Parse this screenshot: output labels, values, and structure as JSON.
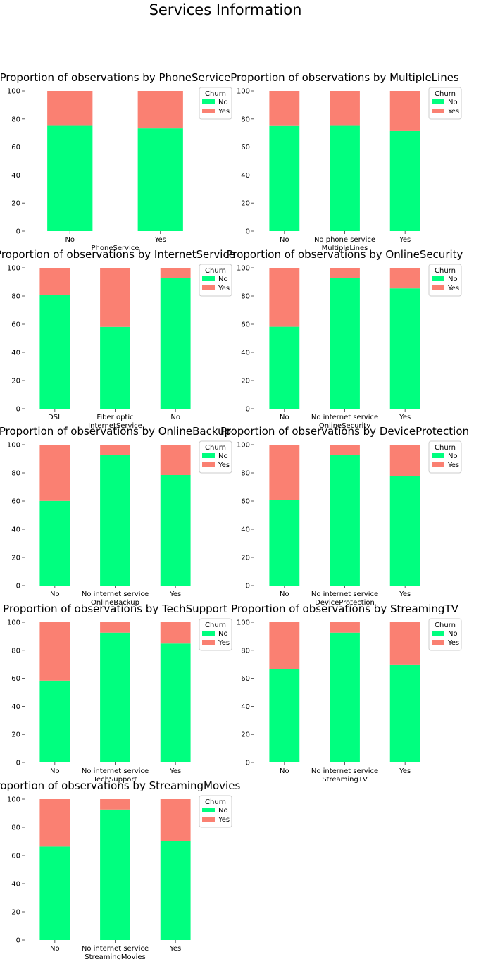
{
  "figure": {
    "suptitle": "Services Information"
  },
  "colors": {
    "No": "#00FF7F",
    "Yes": "#FA8072"
  },
  "legend_title": "Churn",
  "legend_labels": [
    "No",
    "Yes"
  ],
  "chart_data": [
    {
      "type": "bar",
      "stacked": true,
      "title": "Proportion of observations by PhoneService",
      "xlabel": "PhoneService",
      "ylabel": "",
      "ylim": [
        0,
        100
      ],
      "yticks": [
        0,
        20,
        40,
        60,
        80,
        100
      ],
      "categories": [
        "No",
        "Yes"
      ],
      "series": [
        {
          "name": "No",
          "values": [
            75.1,
            73.3
          ]
        },
        {
          "name": "Yes",
          "values": [
            24.9,
            26.7
          ]
        }
      ],
      "legend": {
        "title": "Churn",
        "placement": "top-right"
      }
    },
    {
      "type": "bar",
      "stacked": true,
      "title": "Proportion of observations by MultipleLines",
      "xlabel": "MultipleLines",
      "ylabel": "",
      "ylim": [
        0,
        100
      ],
      "yticks": [
        0,
        20,
        40,
        60,
        80,
        100
      ],
      "categories": [
        "No",
        "No phone service",
        "Yes"
      ],
      "series": [
        {
          "name": "No",
          "values": [
            75.0,
            75.1,
            71.4
          ]
        },
        {
          "name": "Yes",
          "values": [
            25.0,
            24.9,
            28.6
          ]
        }
      ],
      "legend": {
        "title": "Churn",
        "placement": "top-right"
      }
    },
    {
      "type": "bar",
      "stacked": true,
      "title": "Proportion of observations by InternetService",
      "xlabel": "InternetService",
      "ylabel": "",
      "ylim": [
        0,
        100
      ],
      "yticks": [
        0,
        20,
        40,
        60,
        80,
        100
      ],
      "categories": [
        "DSL",
        "Fiber optic",
        "No"
      ],
      "series": [
        {
          "name": "No",
          "values": [
            81.0,
            58.1,
            92.6
          ]
        },
        {
          "name": "Yes",
          "values": [
            19.0,
            41.9,
            7.4
          ]
        }
      ],
      "legend": {
        "title": "Churn",
        "placement": "top-right"
      }
    },
    {
      "type": "bar",
      "stacked": true,
      "title": "Proportion of observations by OnlineSecurity",
      "xlabel": "OnlineSecurity",
      "ylabel": "",
      "ylim": [
        0,
        100
      ],
      "yticks": [
        0,
        20,
        40,
        60,
        80,
        100
      ],
      "categories": [
        "No",
        "No internet service",
        "Yes"
      ],
      "series": [
        {
          "name": "No",
          "values": [
            58.2,
            92.6,
            85.4
          ]
        },
        {
          "name": "Yes",
          "values": [
            41.8,
            7.4,
            14.6
          ]
        }
      ],
      "legend": {
        "title": "Churn",
        "placement": "top-right"
      }
    },
    {
      "type": "bar",
      "stacked": true,
      "title": "Proportion of observations by OnlineBackup",
      "xlabel": "OnlineBackup",
      "ylabel": "",
      "ylim": [
        0,
        100
      ],
      "yticks": [
        0,
        20,
        40,
        60,
        80,
        100
      ],
      "categories": [
        "No",
        "No internet service",
        "Yes"
      ],
      "series": [
        {
          "name": "No",
          "values": [
            60.1,
            92.6,
            78.5
          ]
        },
        {
          "name": "Yes",
          "values": [
            39.9,
            7.4,
            21.5
          ]
        }
      ],
      "legend": {
        "title": "Churn",
        "placement": "top-right"
      }
    },
    {
      "type": "bar",
      "stacked": true,
      "title": "Proportion of observations by DeviceProtection",
      "xlabel": "DeviceProtection",
      "ylabel": "",
      "ylim": [
        0,
        100
      ],
      "yticks": [
        0,
        20,
        40,
        60,
        80,
        100
      ],
      "categories": [
        "No",
        "No internet service",
        "Yes"
      ],
      "series": [
        {
          "name": "No",
          "values": [
            60.9,
            92.6,
            77.5
          ]
        },
        {
          "name": "Yes",
          "values": [
            39.1,
            7.4,
            22.5
          ]
        }
      ],
      "legend": {
        "title": "Churn",
        "placement": "top-right"
      }
    },
    {
      "type": "bar",
      "stacked": true,
      "title": "Proportion of observations by TechSupport",
      "xlabel": "TechSupport",
      "ylabel": "",
      "ylim": [
        0,
        100
      ],
      "yticks": [
        0,
        20,
        40,
        60,
        80,
        100
      ],
      "categories": [
        "No",
        "No internet service",
        "Yes"
      ],
      "series": [
        {
          "name": "No",
          "values": [
            58.4,
            92.6,
            84.8
          ]
        },
        {
          "name": "Yes",
          "values": [
            41.6,
            7.4,
            15.2
          ]
        }
      ],
      "legend": {
        "title": "Churn",
        "placement": "top-right"
      }
    },
    {
      "type": "bar",
      "stacked": true,
      "title": "Proportion of observations by StreamingTV",
      "xlabel": "StreamingTV",
      "ylabel": "",
      "ylim": [
        0,
        100
      ],
      "yticks": [
        0,
        20,
        40,
        60,
        80,
        100
      ],
      "categories": [
        "No",
        "No internet service",
        "Yes"
      ],
      "series": [
        {
          "name": "No",
          "values": [
            66.5,
            92.6,
            69.9
          ]
        },
        {
          "name": "Yes",
          "values": [
            33.5,
            7.4,
            30.1
          ]
        }
      ],
      "legend": {
        "title": "Churn",
        "placement": "top-right"
      }
    },
    {
      "type": "bar",
      "stacked": true,
      "title": "Proportion of observations by StreamingMovies",
      "xlabel": "StreamingMovies",
      "ylabel": "",
      "ylim": [
        0,
        100
      ],
      "yticks": [
        0,
        20,
        40,
        60,
        80,
        100
      ],
      "categories": [
        "No",
        "No internet service",
        "Yes"
      ],
      "series": [
        {
          "name": "No",
          "values": [
            66.3,
            92.6,
            70.1
          ]
        },
        {
          "name": "Yes",
          "values": [
            33.7,
            7.4,
            29.9
          ]
        }
      ],
      "legend": {
        "title": "Churn",
        "placement": "top-right"
      }
    }
  ]
}
